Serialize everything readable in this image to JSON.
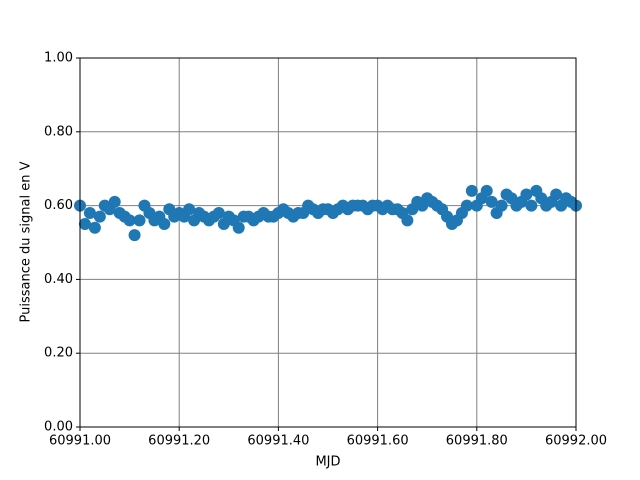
{
  "chart_data": {
    "type": "scatter",
    "xlabel": "MJD",
    "ylabel": "Puissance du signal en V",
    "color": "#1f77b4",
    "grid": true,
    "xlim": [
      60991.0,
      60992.0
    ],
    "xticks": [
      {
        "value": 60991.0,
        "label": "60991.00"
      },
      {
        "value": 60991.2,
        "label": "60991.20"
      },
      {
        "value": 60991.4,
        "label": "60991.40"
      },
      {
        "value": 60991.6,
        "label": "60991.60"
      },
      {
        "value": 60991.8,
        "label": "60991.80"
      },
      {
        "value": 60992.0,
        "label": "60992.00"
      }
    ],
    "ylim": [
      0,
      1
    ],
    "yticks": [
      {
        "value": 0,
        "label": "0.00"
      },
      {
        "value": 0.2,
        "label": "0.20"
      },
      {
        "value": 0.4,
        "label": "0.40"
      },
      {
        "value": 0.6,
        "label": "0.60"
      },
      {
        "value": 0.8,
        "label": "0.80"
      },
      {
        "value": 1,
        "label": "1.00"
      }
    ],
    "x": [
      60991.0,
      60991.01,
      60991.02,
      60991.03,
      60991.04,
      60991.05,
      60991.06,
      60991.07,
      60991.08,
      60991.09,
      60991.1,
      60991.11,
      60991.12,
      60991.13,
      60991.14,
      60991.15,
      60991.16,
      60991.17,
      60991.18,
      60991.19,
      60991.2,
      60991.21,
      60991.22,
      60991.23,
      60991.24,
      60991.25,
      60991.26,
      60991.27,
      60991.28,
      60991.29,
      60991.3,
      60991.31,
      60991.32,
      60991.33,
      60991.34,
      60991.35,
      60991.36,
      60991.37,
      60991.38,
      60991.39,
      60991.4,
      60991.41,
      60991.42,
      60991.43,
      60991.44,
      60991.45,
      60991.46,
      60991.47,
      60991.48,
      60991.49,
      60991.5,
      60991.51,
      60991.52,
      60991.53,
      60991.54,
      60991.55,
      60991.56,
      60991.57,
      60991.58,
      60991.59,
      60991.6,
      60991.61,
      60991.62,
      60991.63,
      60991.64,
      60991.65,
      60991.66,
      60991.67,
      60991.68,
      60991.69,
      60991.7,
      60991.71,
      60991.72,
      60991.73,
      60991.74,
      60991.75,
      60991.76,
      60991.77,
      60991.78,
      60991.79,
      60991.8,
      60991.81,
      60991.82,
      60991.83,
      60991.84,
      60991.85,
      60991.86,
      60991.87,
      60991.88,
      60991.89,
      60991.9,
      60991.91,
      60991.92,
      60991.93,
      60991.94,
      60991.95,
      60991.96,
      60991.97,
      60991.98,
      60991.99,
      60992.0
    ],
    "values": [
      0.6,
      0.55,
      0.58,
      0.54,
      0.57,
      0.6,
      0.59,
      0.61,
      0.58,
      0.57,
      0.56,
      0.52,
      0.56,
      0.6,
      0.58,
      0.56,
      0.57,
      0.55,
      0.59,
      0.57,
      0.58,
      0.57,
      0.59,
      0.56,
      0.58,
      0.57,
      0.56,
      0.57,
      0.58,
      0.55,
      0.57,
      0.56,
      0.54,
      0.57,
      0.57,
      0.56,
      0.57,
      0.58,
      0.57,
      0.57,
      0.58,
      0.59,
      0.58,
      0.57,
      0.58,
      0.58,
      0.6,
      0.59,
      0.58,
      0.59,
      0.59,
      0.58,
      0.59,
      0.6,
      0.59,
      0.6,
      0.6,
      0.6,
      0.59,
      0.6,
      0.6,
      0.59,
      0.6,
      0.59,
      0.59,
      0.58,
      0.56,
      0.59,
      0.61,
      0.6,
      0.62,
      0.61,
      0.6,
      0.59,
      0.57,
      0.55,
      0.56,
      0.58,
      0.6,
      0.64,
      0.6,
      0.62,
      0.64,
      0.61,
      0.58,
      0.6,
      0.63,
      0.62,
      0.6,
      0.61,
      0.63,
      0.6,
      0.64,
      0.62,
      0.6,
      0.61,
      0.63,
      0.6,
      0.62,
      0.61,
      0.6
    ]
  }
}
